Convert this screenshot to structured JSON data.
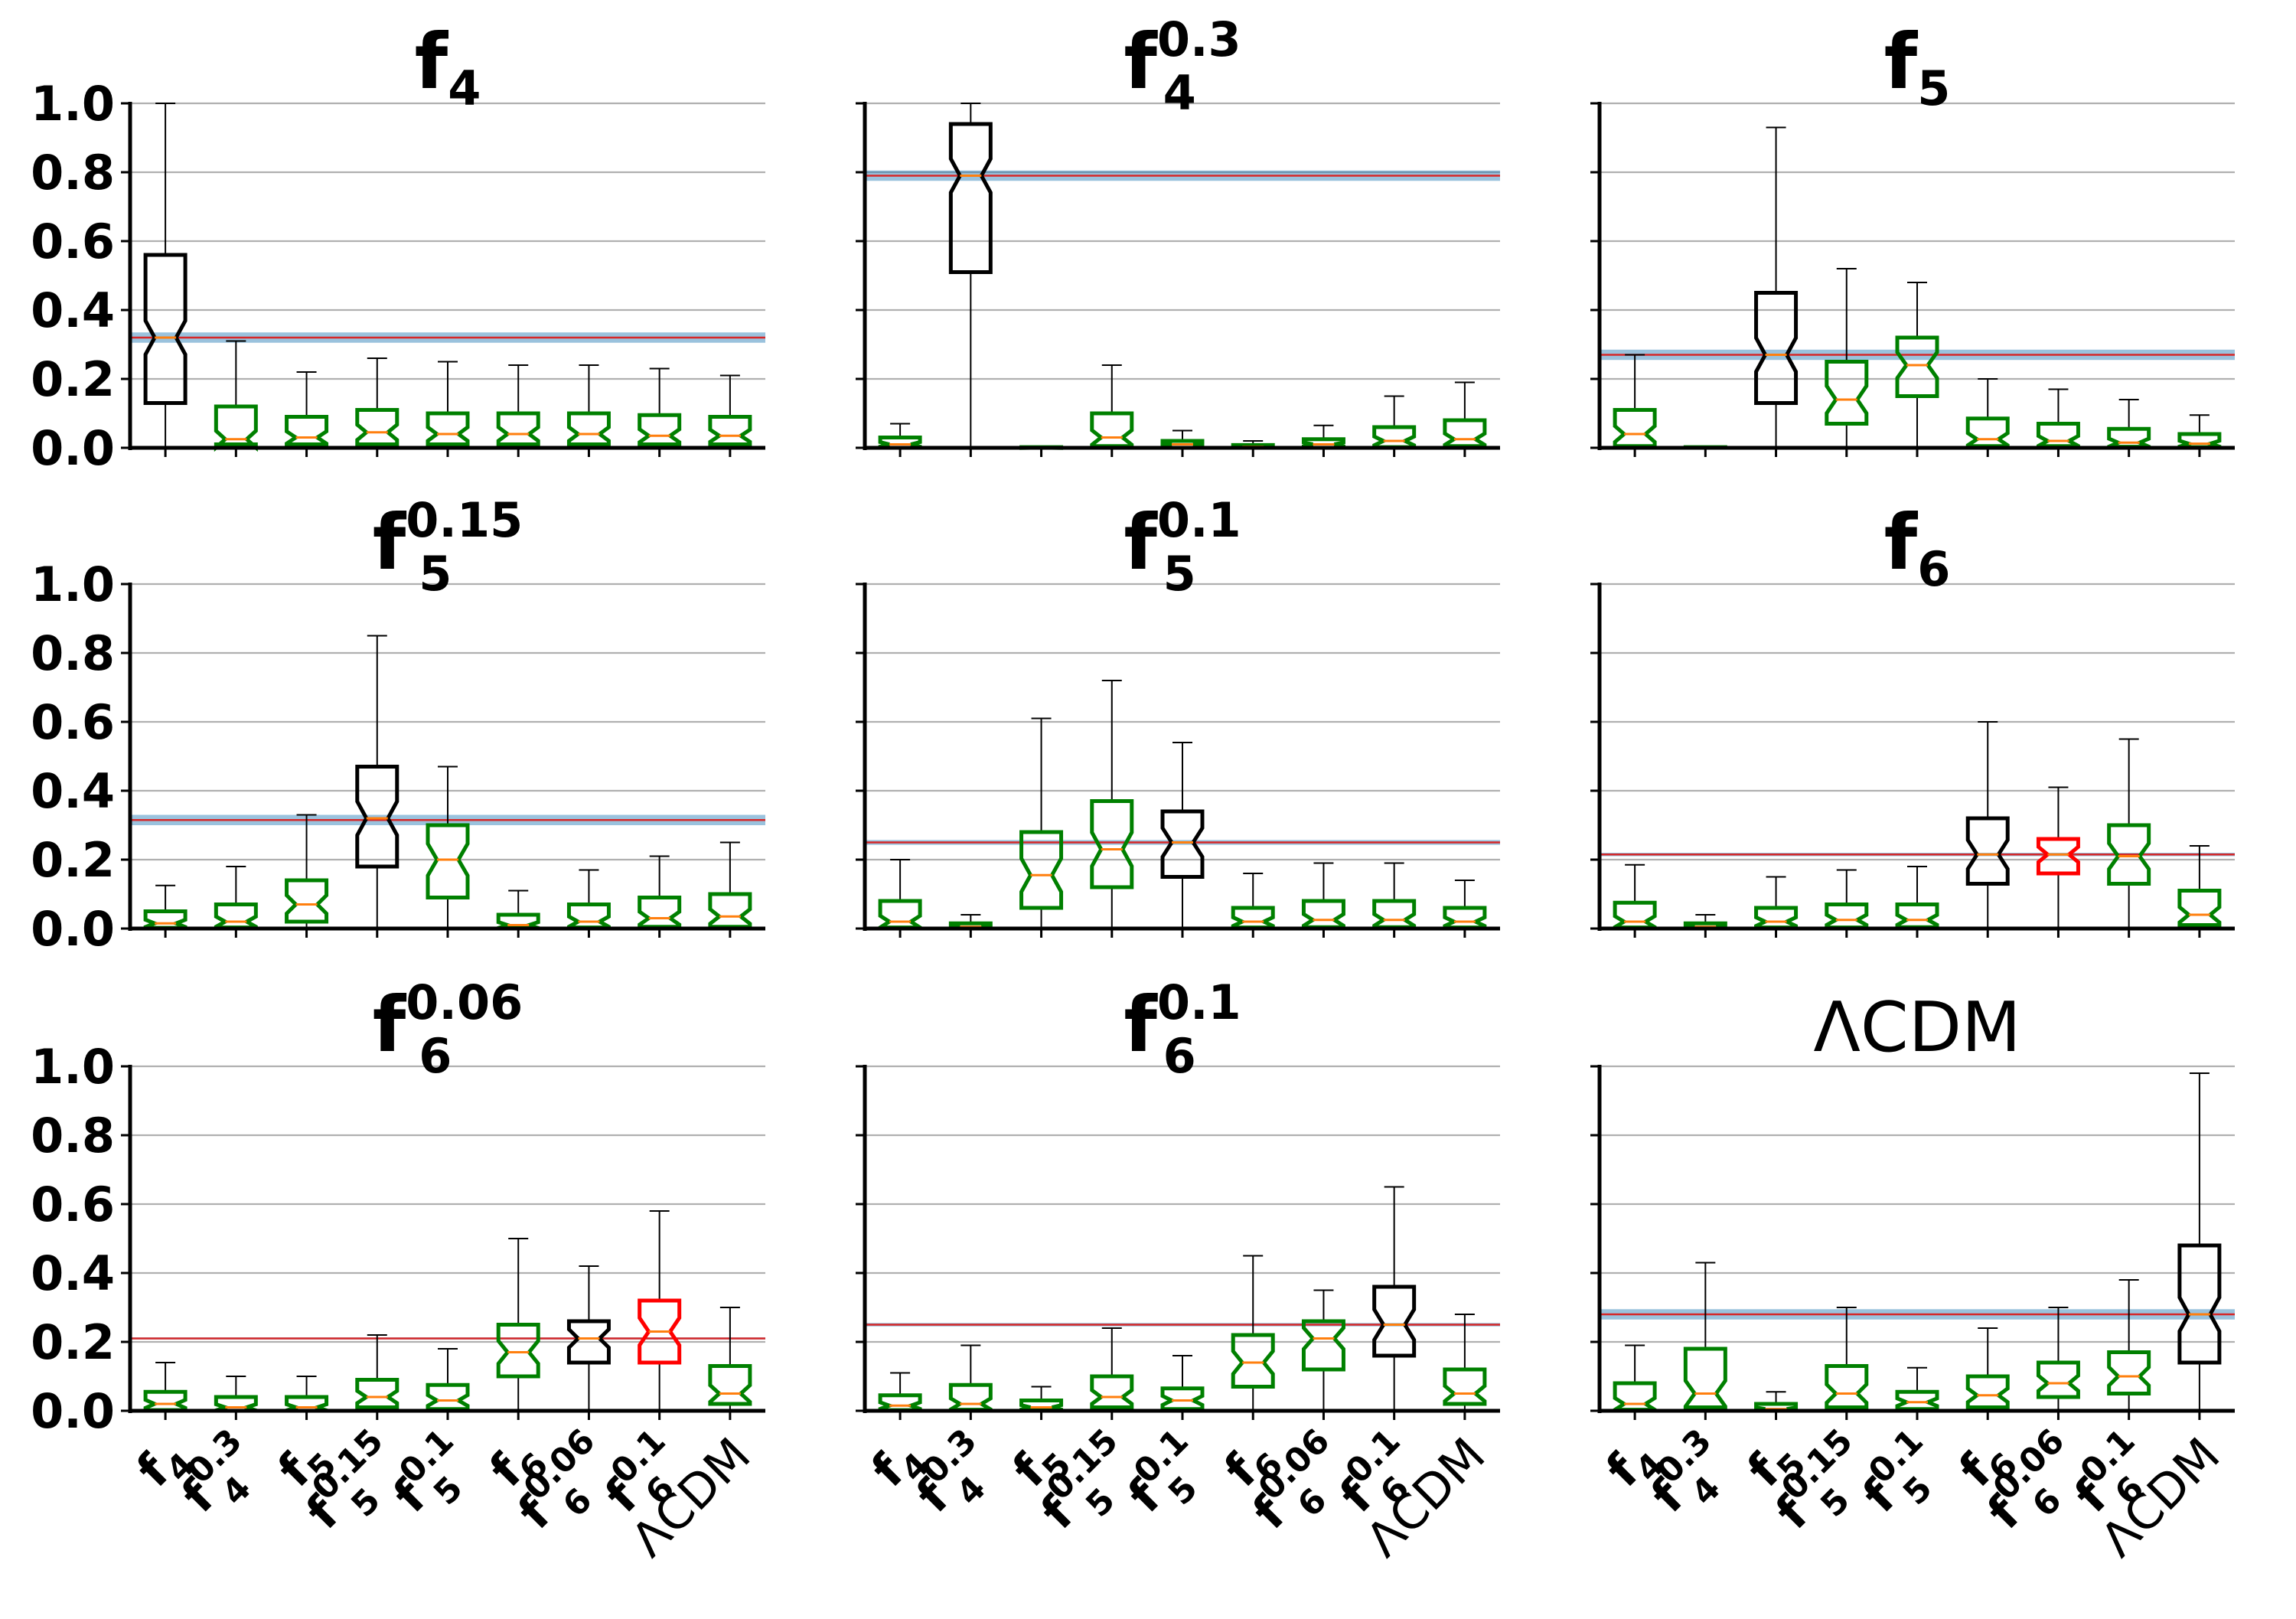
{
  "chart_data": {
    "type": "boxplot",
    "layout": "3x3 grid of panels",
    "categories": [
      {
        "label": "f",
        "sub": "4",
        "sup": ""
      },
      {
        "label": "f",
        "sub": "4",
        "sup": "0.3"
      },
      {
        "label": "f",
        "sub": "5",
        "sup": ""
      },
      {
        "label": "f",
        "sub": "5",
        "sup": "0.15"
      },
      {
        "label": "f",
        "sub": "5",
        "sup": "0.1"
      },
      {
        "label": "f",
        "sub": "6",
        "sup": ""
      },
      {
        "label": "f",
        "sub": "6",
        "sup": "0.06"
      },
      {
        "label": "f",
        "sub": "6",
        "sup": "0.1"
      },
      {
        "label": "ΛCDM",
        "sub": "",
        "sup": ""
      }
    ],
    "yticks": [
      "0.0",
      "0.2",
      "0.4",
      "0.6",
      "0.8",
      "1.0"
    ],
    "ylim": [
      0,
      1.0
    ],
    "grid": "horizontal",
    "colors": {
      "box_true_model": "#000000",
      "box_other": "#008000",
      "box_highlight": "#ff0000",
      "median_line": "#ff7f0e",
      "ref_line": "#d62728",
      "ref_band": "#1f77b4",
      "whisker": "#000000",
      "grid": "#b0b0b0"
    },
    "panels": [
      {
        "title": {
          "label": "f",
          "sub": "4",
          "sup": "",
          "bold": true
        },
        "ref": 0.32,
        "band": [
          0.305,
          0.335
        ],
        "boxes": [
          {
            "q1": 0.13,
            "median": 0.32,
            "q3": 0.56,
            "whislo": 0.0,
            "whishi": 1.0,
            "color": "black"
          },
          {
            "q1": 0.01,
            "median": 0.025,
            "q3": 0.12,
            "whislo": 0.0,
            "whishi": 0.31,
            "color": "green"
          },
          {
            "q1": 0.01,
            "median": 0.03,
            "q3": 0.09,
            "whislo": 0.0,
            "whishi": 0.22,
            "color": "green"
          },
          {
            "q1": 0.01,
            "median": 0.045,
            "q3": 0.11,
            "whislo": 0.0,
            "whishi": 0.26,
            "color": "green"
          },
          {
            "q1": 0.01,
            "median": 0.04,
            "q3": 0.1,
            "whislo": 0.0,
            "whishi": 0.25,
            "color": "green"
          },
          {
            "q1": 0.01,
            "median": 0.04,
            "q3": 0.1,
            "whislo": 0.0,
            "whishi": 0.24,
            "color": "green"
          },
          {
            "q1": 0.01,
            "median": 0.04,
            "q3": 0.1,
            "whislo": 0.0,
            "whishi": 0.24,
            "color": "green"
          },
          {
            "q1": 0.01,
            "median": 0.035,
            "q3": 0.095,
            "whislo": 0.0,
            "whishi": 0.23,
            "color": "green"
          },
          {
            "q1": 0.01,
            "median": 0.035,
            "q3": 0.09,
            "whislo": 0.0,
            "whishi": 0.21,
            "color": "green"
          }
        ]
      },
      {
        "title": {
          "label": "f",
          "sub": "4",
          "sup": "0.3",
          "bold": true
        },
        "ref": 0.79,
        "band": [
          0.775,
          0.805
        ],
        "boxes": [
          {
            "q1": 0.0,
            "median": 0.01,
            "q3": 0.03,
            "whislo": 0.0,
            "whishi": 0.07,
            "color": "green"
          },
          {
            "q1": 0.51,
            "median": 0.79,
            "q3": 0.94,
            "whislo": 0.0,
            "whishi": 1.0,
            "color": "black"
          },
          {
            "q1": 0.0,
            "median": 0.0,
            "q3": 0.002,
            "whislo": 0.0,
            "whishi": 0.004,
            "color": "green"
          },
          {
            "q1": 0.005,
            "median": 0.03,
            "q3": 0.1,
            "whislo": 0.0,
            "whishi": 0.24,
            "color": "green"
          },
          {
            "q1": 0.0,
            "median": 0.01,
            "q3": 0.02,
            "whislo": 0.0,
            "whishi": 0.05,
            "color": "green"
          },
          {
            "q1": 0.0,
            "median": 0.003,
            "q3": 0.008,
            "whislo": 0.0,
            "whishi": 0.02,
            "color": "green"
          },
          {
            "q1": 0.0,
            "median": 0.01,
            "q3": 0.025,
            "whislo": 0.0,
            "whishi": 0.065,
            "color": "green"
          },
          {
            "q1": 0.002,
            "median": 0.02,
            "q3": 0.06,
            "whislo": 0.0,
            "whishi": 0.15,
            "color": "green"
          },
          {
            "q1": 0.005,
            "median": 0.025,
            "q3": 0.08,
            "whislo": 0.0,
            "whishi": 0.19,
            "color": "green"
          }
        ]
      },
      {
        "title": {
          "label": "f",
          "sub": "5",
          "sup": "",
          "bold": true
        },
        "ref": 0.27,
        "band": [
          0.255,
          0.285
        ],
        "boxes": [
          {
            "q1": 0.005,
            "median": 0.04,
            "q3": 0.11,
            "whislo": 0.0,
            "whishi": 0.27,
            "color": "green"
          },
          {
            "q1": 0.0,
            "median": 0.001,
            "q3": 0.002,
            "whislo": 0.0,
            "whishi": 0.004,
            "color": "green"
          },
          {
            "q1": 0.13,
            "median": 0.27,
            "q3": 0.45,
            "whislo": 0.0,
            "whishi": 0.93,
            "color": "black"
          },
          {
            "q1": 0.07,
            "median": 0.14,
            "q3": 0.25,
            "whislo": 0.0,
            "whishi": 0.52,
            "color": "green"
          },
          {
            "q1": 0.15,
            "median": 0.24,
            "q3": 0.32,
            "whislo": 0.0,
            "whishi": 0.48,
            "color": "green"
          },
          {
            "q1": 0.005,
            "median": 0.025,
            "q3": 0.085,
            "whislo": 0.0,
            "whishi": 0.2,
            "color": "green"
          },
          {
            "q1": 0.005,
            "median": 0.02,
            "q3": 0.07,
            "whislo": 0.0,
            "whishi": 0.17,
            "color": "green"
          },
          {
            "q1": 0.003,
            "median": 0.015,
            "q3": 0.055,
            "whislo": 0.0,
            "whishi": 0.14,
            "color": "green"
          },
          {
            "q1": 0.002,
            "median": 0.012,
            "q3": 0.04,
            "whislo": 0.0,
            "whishi": 0.095,
            "color": "green"
          }
        ]
      },
      {
        "title": {
          "label": "f",
          "sub": "5",
          "sup": "0.15",
          "bold": true
        },
        "ref": 0.315,
        "band": [
          0.3,
          0.33
        ],
        "boxes": [
          {
            "q1": 0.002,
            "median": 0.015,
            "q3": 0.05,
            "whislo": 0.0,
            "whishi": 0.125,
            "color": "green"
          },
          {
            "q1": 0.003,
            "median": 0.02,
            "q3": 0.07,
            "whislo": 0.0,
            "whishi": 0.18,
            "color": "green"
          },
          {
            "q1": 0.02,
            "median": 0.07,
            "q3": 0.14,
            "whislo": 0.0,
            "whishi": 0.33,
            "color": "green"
          },
          {
            "q1": 0.18,
            "median": 0.32,
            "q3": 0.47,
            "whislo": 0.0,
            "whishi": 0.85,
            "color": "black"
          },
          {
            "q1": 0.09,
            "median": 0.2,
            "q3": 0.3,
            "whislo": 0.0,
            "whishi": 0.47,
            "color": "green"
          },
          {
            "q1": 0.001,
            "median": 0.01,
            "q3": 0.04,
            "whislo": 0.0,
            "whishi": 0.11,
            "color": "green"
          },
          {
            "q1": 0.003,
            "median": 0.02,
            "q3": 0.07,
            "whislo": 0.0,
            "whishi": 0.17,
            "color": "green"
          },
          {
            "q1": 0.005,
            "median": 0.03,
            "q3": 0.09,
            "whislo": 0.0,
            "whishi": 0.21,
            "color": "green"
          },
          {
            "q1": 0.005,
            "median": 0.035,
            "q3": 0.1,
            "whislo": 0.0,
            "whishi": 0.25,
            "color": "green"
          }
        ]
      },
      {
        "title": {
          "label": "f",
          "sub": "5",
          "sup": "0.1",
          "bold": true
        },
        "ref": 0.25,
        "band": [
          0.243,
          0.257
        ],
        "boxes": [
          {
            "q1": 0.003,
            "median": 0.02,
            "q3": 0.08,
            "whislo": 0.0,
            "whishi": 0.2,
            "color": "green"
          },
          {
            "q1": 0.0,
            "median": 0.005,
            "q3": 0.015,
            "whislo": 0.0,
            "whishi": 0.04,
            "color": "green"
          },
          {
            "q1": 0.06,
            "median": 0.155,
            "q3": 0.28,
            "whislo": 0.0,
            "whishi": 0.61,
            "color": "green"
          },
          {
            "q1": 0.12,
            "median": 0.23,
            "q3": 0.37,
            "whislo": 0.0,
            "whishi": 0.72,
            "color": "green"
          },
          {
            "q1": 0.15,
            "median": 0.25,
            "q3": 0.34,
            "whislo": 0.0,
            "whishi": 0.54,
            "color": "black"
          },
          {
            "q1": 0.003,
            "median": 0.02,
            "q3": 0.06,
            "whislo": 0.0,
            "whishi": 0.16,
            "color": "green"
          },
          {
            "q1": 0.004,
            "median": 0.025,
            "q3": 0.08,
            "whislo": 0.0,
            "whishi": 0.19,
            "color": "green"
          },
          {
            "q1": 0.004,
            "median": 0.025,
            "q3": 0.08,
            "whislo": 0.0,
            "whishi": 0.19,
            "color": "green"
          },
          {
            "q1": 0.003,
            "median": 0.02,
            "q3": 0.06,
            "whislo": 0.0,
            "whishi": 0.14,
            "color": "green"
          }
        ]
      },
      {
        "title": {
          "label": "f",
          "sub": "6",
          "sup": "",
          "bold": true
        },
        "ref": 0.215,
        "band": [
          0.21,
          0.22
        ],
        "boxes": [
          {
            "q1": 0.003,
            "median": 0.02,
            "q3": 0.075,
            "whislo": 0.0,
            "whishi": 0.185,
            "color": "green"
          },
          {
            "q1": 0.0,
            "median": 0.005,
            "q3": 0.015,
            "whislo": 0.0,
            "whishi": 0.04,
            "color": "green"
          },
          {
            "q1": 0.003,
            "median": 0.02,
            "q3": 0.06,
            "whislo": 0.0,
            "whishi": 0.15,
            "color": "green"
          },
          {
            "q1": 0.003,
            "median": 0.025,
            "q3": 0.07,
            "whislo": 0.0,
            "whishi": 0.17,
            "color": "green"
          },
          {
            "q1": 0.004,
            "median": 0.025,
            "q3": 0.07,
            "whislo": 0.0,
            "whishi": 0.18,
            "color": "green"
          },
          {
            "q1": 0.13,
            "median": 0.215,
            "q3": 0.32,
            "whislo": 0.0,
            "whishi": 0.6,
            "color": "black"
          },
          {
            "q1": 0.16,
            "median": 0.215,
            "q3": 0.26,
            "whislo": 0.0,
            "whishi": 0.41,
            "color": "red"
          },
          {
            "q1": 0.13,
            "median": 0.21,
            "q3": 0.3,
            "whislo": 0.0,
            "whishi": 0.55,
            "color": "green"
          },
          {
            "q1": 0.01,
            "median": 0.04,
            "q3": 0.11,
            "whislo": 0.0,
            "whishi": 0.24,
            "color": "green"
          }
        ]
      },
      {
        "title": {
          "label": "f",
          "sub": "6",
          "sup": "0.06",
          "bold": true
        },
        "ref": 0.21,
        "band": [
          0.207,
          0.213
        ],
        "boxes": [
          {
            "q1": 0.002,
            "median": 0.02,
            "q3": 0.055,
            "whislo": 0.0,
            "whishi": 0.14,
            "color": "green"
          },
          {
            "q1": 0.0,
            "median": 0.01,
            "q3": 0.04,
            "whislo": 0.0,
            "whishi": 0.1,
            "color": "green"
          },
          {
            "q1": 0.0,
            "median": 0.01,
            "q3": 0.04,
            "whislo": 0.0,
            "whishi": 0.1,
            "color": "green"
          },
          {
            "q1": 0.01,
            "median": 0.04,
            "q3": 0.09,
            "whislo": 0.0,
            "whishi": 0.22,
            "color": "green"
          },
          {
            "q1": 0.005,
            "median": 0.03,
            "q3": 0.075,
            "whislo": 0.0,
            "whishi": 0.18,
            "color": "green"
          },
          {
            "q1": 0.1,
            "median": 0.17,
            "q3": 0.25,
            "whislo": 0.0,
            "whishi": 0.5,
            "color": "green"
          },
          {
            "q1": 0.14,
            "median": 0.21,
            "q3": 0.26,
            "whislo": 0.0,
            "whishi": 0.42,
            "color": "black"
          },
          {
            "q1": 0.14,
            "median": 0.23,
            "q3": 0.32,
            "whislo": 0.0,
            "whishi": 0.58,
            "color": "red"
          },
          {
            "q1": 0.02,
            "median": 0.05,
            "q3": 0.13,
            "whislo": 0.0,
            "whishi": 0.3,
            "color": "green"
          }
        ]
      },
      {
        "title": {
          "label": "f",
          "sub": "6",
          "sup": "0.1",
          "bold": true
        },
        "ref": 0.25,
        "band": [
          0.245,
          0.255
        ],
        "boxes": [
          {
            "q1": 0.002,
            "median": 0.015,
            "q3": 0.045,
            "whislo": 0.0,
            "whishi": 0.11,
            "color": "green"
          },
          {
            "q1": 0.003,
            "median": 0.02,
            "q3": 0.075,
            "whislo": 0.0,
            "whishi": 0.19,
            "color": "green"
          },
          {
            "q1": 0.001,
            "median": 0.01,
            "q3": 0.03,
            "whislo": 0.0,
            "whishi": 0.07,
            "color": "green"
          },
          {
            "q1": 0.01,
            "median": 0.04,
            "q3": 0.1,
            "whislo": 0.0,
            "whishi": 0.24,
            "color": "green"
          },
          {
            "q1": 0.005,
            "median": 0.03,
            "q3": 0.065,
            "whislo": 0.0,
            "whishi": 0.16,
            "color": "green"
          },
          {
            "q1": 0.07,
            "median": 0.14,
            "q3": 0.22,
            "whislo": 0.0,
            "whishi": 0.45,
            "color": "green"
          },
          {
            "q1": 0.12,
            "median": 0.21,
            "q3": 0.26,
            "whislo": 0.0,
            "whishi": 0.35,
            "color": "green"
          },
          {
            "q1": 0.16,
            "median": 0.25,
            "q3": 0.36,
            "whislo": 0.0,
            "whishi": 0.65,
            "color": "black"
          },
          {
            "q1": 0.02,
            "median": 0.05,
            "q3": 0.12,
            "whislo": 0.0,
            "whishi": 0.28,
            "color": "green"
          }
        ]
      },
      {
        "title": {
          "label": "ΛCDM",
          "sub": "",
          "sup": "",
          "bold": false
        },
        "ref": 0.28,
        "band": [
          0.265,
          0.295
        ],
        "boxes": [
          {
            "q1": 0.003,
            "median": 0.02,
            "q3": 0.08,
            "whislo": 0.0,
            "whishi": 0.19,
            "color": "green"
          },
          {
            "q1": 0.01,
            "median": 0.05,
            "q3": 0.18,
            "whislo": 0.0,
            "whishi": 0.43,
            "color": "green"
          },
          {
            "q1": 0.0,
            "median": 0.005,
            "q3": 0.02,
            "whislo": 0.0,
            "whishi": 0.055,
            "color": "green"
          },
          {
            "q1": 0.01,
            "median": 0.05,
            "q3": 0.13,
            "whislo": 0.0,
            "whishi": 0.3,
            "color": "green"
          },
          {
            "q1": 0.005,
            "median": 0.025,
            "q3": 0.055,
            "whislo": 0.0,
            "whishi": 0.125,
            "color": "green"
          },
          {
            "q1": 0.01,
            "median": 0.045,
            "q3": 0.1,
            "whislo": 0.0,
            "whishi": 0.24,
            "color": "green"
          },
          {
            "q1": 0.04,
            "median": 0.08,
            "q3": 0.14,
            "whislo": 0.0,
            "whishi": 0.3,
            "color": "green"
          },
          {
            "q1": 0.05,
            "median": 0.1,
            "q3": 0.17,
            "whislo": 0.0,
            "whishi": 0.38,
            "color": "green"
          },
          {
            "q1": 0.14,
            "median": 0.28,
            "q3": 0.48,
            "whislo": 0.0,
            "whishi": 0.98,
            "color": "black"
          }
        ]
      }
    ]
  }
}
